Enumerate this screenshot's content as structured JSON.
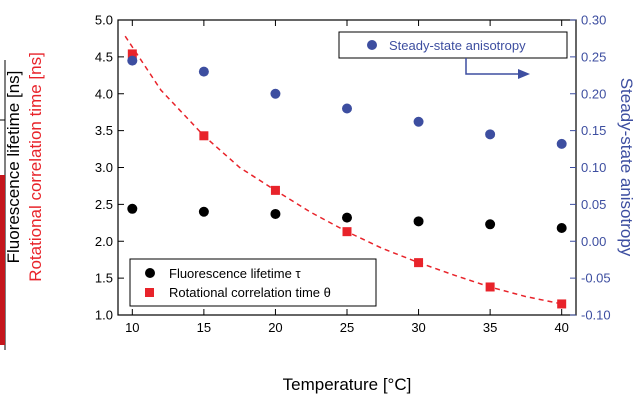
{
  "chart_data": {
    "type": "scatter",
    "xlabel": "Temperature [°C]",
    "ylabel_left_1": "Fluorescence lifetime [ns]",
    "ylabel_left_2": "Rotational correlation time [ns]",
    "ylabel_right": "Steady-state anisotropy",
    "xlim": [
      9,
      41
    ],
    "ylim_left": [
      1.0,
      5.0
    ],
    "ylim_right": [
      -0.1,
      0.3
    ],
    "x_ticks": [
      10,
      15,
      20,
      25,
      30,
      35,
      40
    ],
    "y_left_ticks": [
      "1.0",
      "1.5",
      "2.0",
      "2.5",
      "3.0",
      "3.5",
      "4.0",
      "4.5",
      "5.0"
    ],
    "y_right_ticks": [
      "-0.10",
      "-0.05",
      "0.00",
      "0.05",
      "0.10",
      "0.15",
      "0.20",
      "0.25",
      "0.30"
    ],
    "series": [
      {
        "name": "Fluorescence lifetime τ",
        "axis": "left",
        "marker": "circle",
        "color": "#000000",
        "x": [
          10,
          15,
          20,
          25,
          30,
          35,
          40
        ],
        "y": [
          2.44,
          2.4,
          2.37,
          2.32,
          2.27,
          2.23,
          2.18
        ]
      },
      {
        "name": "Rotational correlation time θ",
        "axis": "left",
        "marker": "square",
        "color": "#e8232a",
        "x": [
          10,
          15,
          20,
          25,
          30,
          35,
          40
        ],
        "y": [
          4.54,
          3.43,
          2.69,
          2.13,
          1.71,
          1.38,
          1.15
        ]
      },
      {
        "name": "Steady-state anisotropy",
        "axis": "right",
        "marker": "circle",
        "color": "#3d4ea0",
        "x": [
          10,
          15,
          20,
          25,
          30,
          35,
          40
        ],
        "y": [
          0.245,
          0.23,
          0.2,
          0.18,
          0.162,
          0.145,
          0.132
        ]
      }
    ],
    "fit_curve": {
      "axis": "left",
      "color": "#e8232a",
      "style": "dashed",
      "x": [
        9.5,
        12,
        15,
        17.5,
        20,
        22.5,
        25,
        27.5,
        30,
        32.5,
        35,
        37.5,
        40
      ],
      "y": [
        4.78,
        4.05,
        3.43,
        3.0,
        2.69,
        2.39,
        2.13,
        1.9,
        1.71,
        1.54,
        1.38,
        1.25,
        1.15
      ]
    },
    "legend_upper": {
      "label": "Steady-state anisotropy"
    },
    "legend_lower": [
      {
        "label": "Fluorescence lifetime τ",
        "marker": "circle",
        "color": "#000000"
      },
      {
        "label": "Rotational correlation time θ",
        "marker": "square",
        "color": "#e8232a"
      }
    ],
    "colors": {
      "left_axis": "#000000",
      "right_axis": "#3d4ea0",
      "red": "#e8232a"
    },
    "grid": false
  }
}
